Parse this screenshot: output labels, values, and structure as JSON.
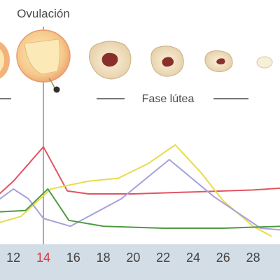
{
  "labels": {
    "ovulation": "Ovulación",
    "luteal_phase": "Fase lútea"
  },
  "colors": {
    "red": "#e2545f",
    "yellow": "#e8dc4a",
    "blue": "#a9a0dc",
    "green": "#4f9a3f",
    "axis_bg": "#d3dde6",
    "highlight": "#d9363e"
  },
  "icons": [
    "ovulating-follicle-icon",
    "corpus-luteum-icon",
    "corpus-luteum-icon",
    "corpus-luteum-icon",
    "corpus-albicans-icon"
  ],
  "chart_data": {
    "type": "line",
    "x_ticks": [
      12,
      14,
      16,
      18,
      20,
      22,
      24,
      26,
      28
    ],
    "highlighted_tick": 14,
    "series": [
      {
        "color": "red",
        "x": [
          10.2,
          12,
          14,
          15.6,
          17,
          20,
          24,
          28,
          30
        ],
        "y": [
          0.33,
          0.58,
          0.93,
          0.48,
          0.45,
          0.45,
          0.47,
          0.49,
          0.51
        ]
      },
      {
        "color": "yellow",
        "x": [
          10.2,
          12.5,
          14.5,
          17,
          19,
          21,
          22.8,
          24.5,
          26,
          28,
          29.2
        ],
        "y": [
          0.12,
          0.22,
          0.5,
          0.58,
          0.61,
          0.76,
          0.95,
          0.67,
          0.38,
          0.12,
          0.02
        ]
      },
      {
        "color": "blue",
        "x": [
          10.2,
          12,
          13,
          14,
          15.8,
          19.2,
          22.4,
          25.4,
          28.5,
          30
        ],
        "y": [
          0.3,
          0.5,
          0.4,
          0.2,
          0.12,
          0.4,
          0.8,
          0.42,
          0.1,
          0.08
        ]
      },
      {
        "color": "green",
        "x": [
          10.2,
          12.8,
          14.3,
          15.7,
          18,
          22,
          26,
          30
        ],
        "y": [
          0.26,
          0.28,
          0.5,
          0.18,
          0.12,
          0.1,
          0.1,
          0.12
        ]
      }
    ]
  }
}
